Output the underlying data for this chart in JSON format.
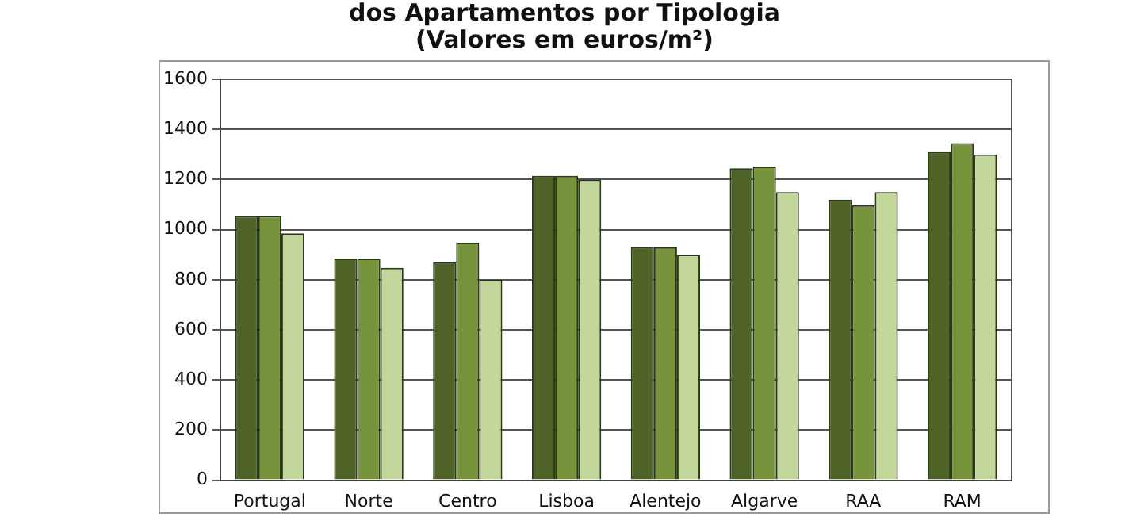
{
  "chart_data": {
    "type": "bar",
    "title": "dos Apartamentos por Tipologia",
    "subtitle": "(Valores em euros/m²)",
    "categories": [
      "Portugal",
      "Norte",
      "Centro",
      "Lisboa",
      "Alentejo",
      "Algarve",
      "RAA",
      "RAM"
    ],
    "series": [
      {
        "color": "#4f6228",
        "values": [
          1055,
          885,
          870,
          1215,
          930,
          1245,
          1120,
          1310
        ]
      },
      {
        "color": "#77933c",
        "values": [
          1055,
          885,
          948,
          1215,
          930,
          1252,
          1098,
          1345
        ]
      },
      {
        "color": "#c3d69b",
        "values": [
          985,
          848,
          800,
          1200,
          900,
          1150,
          1150,
          1300
        ]
      }
    ],
    "ylim": [
      0,
      1600
    ],
    "yticks": [
      0,
      200,
      400,
      600,
      800,
      1000,
      1200,
      1400,
      1600
    ],
    "grid": "y",
    "legend": false
  }
}
